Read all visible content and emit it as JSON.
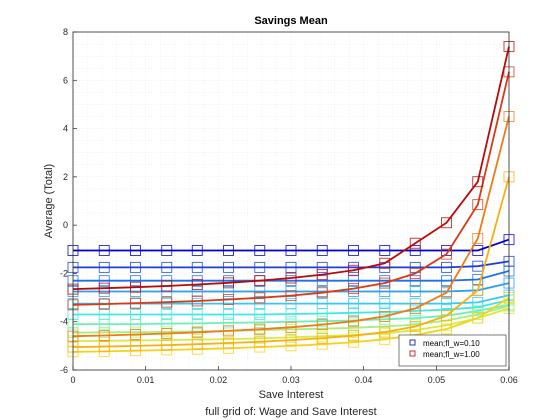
{
  "chart_data": {
    "type": "line",
    "title": "Savings Mean",
    "xlabel": "Save Interest",
    "ylabel": "Average (Total)",
    "caption": "full grid of: Wage and Save Interest",
    "xlim": [
      0,
      0.06
    ],
    "ylim": [
      -6,
      8
    ],
    "x_ticks": [
      "0",
      "0.01",
      "0.02",
      "0.03",
      "0.04",
      "0.05",
      "0.06"
    ],
    "y_ticks": [
      "-6",
      "-4",
      "-2",
      "0",
      "2",
      "4",
      "6",
      "8"
    ],
    "grid": "on (dotted)",
    "legend_position": "bottom-right",
    "legend": [
      {
        "label": "mean;fl_w=0.10",
        "color": "#1a1aa0"
      },
      {
        "label": "mean;fl_w=1.00",
        "color": "#cc1a1a"
      }
    ],
    "x": [
      0,
      0.0043,
      0.0086,
      0.0129,
      0.0171,
      0.0214,
      0.0257,
      0.03,
      0.0343,
      0.0386,
      0.0429,
      0.0471,
      0.0514,
      0.0557,
      0.06
    ],
    "series": [
      {
        "color": "#0000cd",
        "values": [
          -1.05,
          -1.05,
          -1.05,
          -1.05,
          -1.05,
          -1.05,
          -1.05,
          -1.05,
          -1.05,
          -1.05,
          -1.05,
          -1.05,
          -1.05,
          -1.05,
          -0.6
        ]
      },
      {
        "color": "#1a3fdd",
        "values": [
          -1.75,
          -1.75,
          -1.75,
          -1.75,
          -1.75,
          -1.75,
          -1.75,
          -1.75,
          -1.75,
          -1.75,
          -1.75,
          -1.75,
          -1.75,
          -1.7,
          -1.5
        ]
      },
      {
        "color": "#1e6fe8",
        "values": [
          -2.3,
          -2.3,
          -2.3,
          -2.3,
          -2.3,
          -2.3,
          -2.3,
          -2.3,
          -2.3,
          -2.3,
          -2.3,
          -2.3,
          -2.3,
          -2.25,
          -1.9
        ]
      },
      {
        "color": "#2a9ff0",
        "values": [
          -2.75,
          -2.75,
          -2.75,
          -2.75,
          -2.75,
          -2.75,
          -2.75,
          -2.75,
          -2.75,
          -2.75,
          -2.75,
          -2.75,
          -2.75,
          -2.7,
          -2.4
        ]
      },
      {
        "color": "#35c8f5",
        "values": [
          -3.25,
          -3.25,
          -3.25,
          -3.25,
          -3.25,
          -3.25,
          -3.25,
          -3.25,
          -3.25,
          -3.25,
          -3.25,
          -3.25,
          -3.25,
          -3.2,
          -2.9
        ]
      },
      {
        "color": "#3fe8e0",
        "values": [
          -3.7,
          -3.7,
          -3.7,
          -3.7,
          -3.7,
          -3.7,
          -3.7,
          -3.68,
          -3.66,
          -3.63,
          -3.6,
          -3.55,
          -3.5,
          -3.4,
          -3.1
        ]
      },
      {
        "color": "#6af0b8",
        "values": [
          -4.1,
          -4.1,
          -4.1,
          -4.08,
          -4.07,
          -4.05,
          -4.03,
          -4.0,
          -3.98,
          -3.95,
          -3.9,
          -3.85,
          -3.75,
          -3.55,
          -3.3
        ]
      },
      {
        "color": "#a6f07a",
        "values": [
          -4.45,
          -4.44,
          -4.43,
          -4.42,
          -4.4,
          -4.38,
          -4.35,
          -4.32,
          -4.29,
          -4.25,
          -4.2,
          -4.12,
          -3.95,
          -3.7,
          -3.35
        ]
      },
      {
        "color": "#d8ea40",
        "values": [
          -4.8,
          -4.79,
          -4.78,
          -4.76,
          -4.74,
          -4.72,
          -4.69,
          -4.65,
          -4.6,
          -4.55,
          -4.48,
          -4.35,
          -4.15,
          -3.85,
          -3.45
        ]
      },
      {
        "color": "#f5d21a",
        "values": [
          -5.25,
          -5.23,
          -5.2,
          -5.17,
          -5.14,
          -5.1,
          -5.05,
          -5.0,
          -4.93,
          -4.85,
          -4.73,
          -4.55,
          -4.3,
          -3.85,
          -3.0
        ]
      },
      {
        "color": "#f7b00e",
        "values": [
          -5.05,
          -5.03,
          -5.0,
          -4.97,
          -4.93,
          -4.88,
          -4.83,
          -4.76,
          -4.68,
          -4.58,
          -4.43,
          -4.2,
          -3.75,
          -2.7,
          2.0
        ]
      },
      {
        "color": "#f07a14",
        "values": [
          -4.6,
          -4.57,
          -4.53,
          -4.49,
          -4.44,
          -4.38,
          -4.31,
          -4.23,
          -4.12,
          -3.98,
          -3.78,
          -3.45,
          -2.8,
          -0.55,
          4.5
        ]
      },
      {
        "color": "#d83a14",
        "values": [
          -3.3,
          -3.27,
          -3.23,
          -3.19,
          -3.14,
          -3.08,
          -3.01,
          -2.92,
          -2.8,
          -2.63,
          -2.4,
          -2.0,
          -1.2,
          0.85,
          6.35
        ]
      },
      {
        "color": "#b80a0a",
        "values": [
          -2.65,
          -2.61,
          -2.57,
          -2.52,
          -2.46,
          -2.39,
          -2.3,
          -2.19,
          -2.05,
          -1.87,
          -1.58,
          -0.75,
          0.1,
          1.8,
          7.4
        ]
      }
    ]
  }
}
